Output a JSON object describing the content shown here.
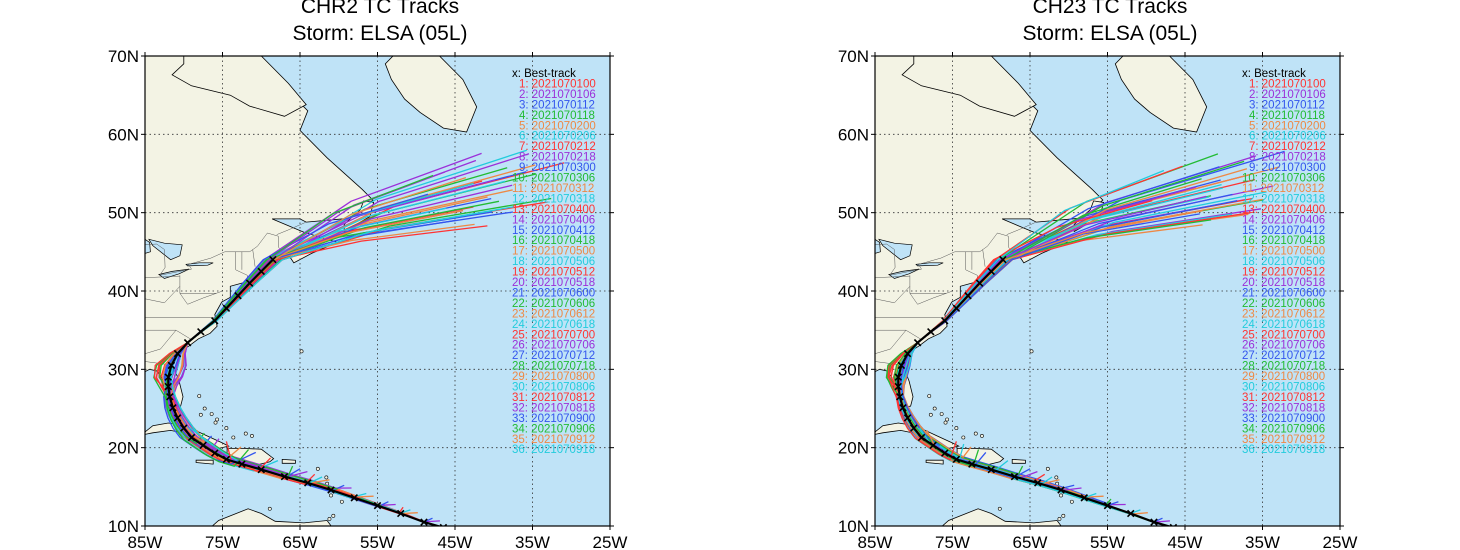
{
  "panels": [
    {
      "title": "CHR2 TC Tracks",
      "subtitle": "Storm: ELSA (05L)"
    },
    {
      "title": "CH23 TC Tracks",
      "subtitle": "Storm: ELSA (05L)"
    }
  ],
  "axes": {
    "lon_ticks": [
      "85W",
      "75W",
      "65W",
      "55W",
      "45W",
      "35W",
      "25W"
    ],
    "lat_ticks": [
      "70N",
      "60N",
      "50N",
      "40N",
      "30N",
      "20N",
      "10N"
    ],
    "lon_range": [
      -85,
      -25
    ],
    "lat_range": [
      10,
      70
    ],
    "grid": "dotted"
  },
  "legend": {
    "position": "top-right",
    "header": "x: Best-track",
    "entries": [
      {
        "label": "1: 2021070100",
        "color": "#ff3333"
      },
      {
        "label": "2: 2021070106",
        "color": "#9b30d9"
      },
      {
        "label": "3: 2021070112",
        "color": "#3355ee"
      },
      {
        "label": "4: 2021070118",
        "color": "#22bb33"
      },
      {
        "label": "5: 2021070200",
        "color": "#ee8844"
      },
      {
        "label": "6: 2021070206",
        "color": "#22ccdd"
      },
      {
        "label": "7: 2021070212",
        "color": "#ff3333"
      },
      {
        "label": "8: 2021070218",
        "color": "#9b30d9"
      },
      {
        "label": "9: 2021070300",
        "color": "#3355ee"
      },
      {
        "label": "10: 2021070306",
        "color": "#22bb33"
      },
      {
        "label": "11: 2021070312",
        "color": "#ee8844"
      },
      {
        "label": "12: 2021070318",
        "color": "#22ccdd"
      },
      {
        "label": "13: 2021070400",
        "color": "#ff3333"
      },
      {
        "label": "14: 2021070406",
        "color": "#9b30d9"
      },
      {
        "label": "15: 2021070412",
        "color": "#3355ee"
      },
      {
        "label": "16: 2021070418",
        "color": "#22bb33"
      },
      {
        "label": "17: 2021070500",
        "color": "#ee8844"
      },
      {
        "label": "18: 2021070506",
        "color": "#22ccdd"
      },
      {
        "label": "19: 2021070512",
        "color": "#ff3333"
      },
      {
        "label": "20: 2021070518",
        "color": "#9b30d9"
      },
      {
        "label": "21: 2021070600",
        "color": "#3355ee"
      },
      {
        "label": "22: 2021070606",
        "color": "#22bb33"
      },
      {
        "label": "23: 2021070612",
        "color": "#ee8844"
      },
      {
        "label": "24: 2021070618",
        "color": "#22ccdd"
      },
      {
        "label": "25: 2021070700",
        "color": "#ff3333"
      },
      {
        "label": "26: 2021070706",
        "color": "#9b30d9"
      },
      {
        "label": "27: 2021070712",
        "color": "#3355ee"
      },
      {
        "label": "28: 2021070718",
        "color": "#22bb33"
      },
      {
        "label": "29: 2021070800",
        "color": "#ee8844"
      },
      {
        "label": "30: 2021070806",
        "color": "#22ccdd"
      },
      {
        "label": "31: 2021070812",
        "color": "#ff3333"
      },
      {
        "label": "32: 2021070818",
        "color": "#9b30d9"
      },
      {
        "label": "33: 2021070900",
        "color": "#3355ee"
      },
      {
        "label": "34: 2021070906",
        "color": "#22bb33"
      },
      {
        "label": "35: 2021070912",
        "color": "#ee8844"
      },
      {
        "label": "36: 2021070918",
        "color": "#22ccdd"
      }
    ]
  },
  "colors": {
    "ocean": "#bfe3f7",
    "land": "#f3f3e4",
    "best_track": "#000000"
  },
  "best_track": [
    [
      -46.5,
      9.8
    ],
    [
      -49.0,
      10.5
    ],
    [
      -52.0,
      11.6
    ],
    [
      -55.0,
      12.6
    ],
    [
      -58.0,
      13.6
    ],
    [
      -61.0,
      14.6
    ],
    [
      -64.0,
      15.5
    ],
    [
      -67.0,
      16.3
    ],
    [
      -70.0,
      17.2
    ],
    [
      -72.5,
      17.9
    ],
    [
      -74.5,
      18.5
    ],
    [
      -76.0,
      19.3
    ],
    [
      -77.5,
      20.3
    ],
    [
      -79.0,
      21.3
    ],
    [
      -80.0,
      22.5
    ],
    [
      -80.8,
      23.8
    ],
    [
      -81.4,
      25.1
    ],
    [
      -81.8,
      26.5
    ],
    [
      -82.0,
      27.8
    ],
    [
      -82.0,
      29.0
    ],
    [
      -81.6,
      30.5
    ],
    [
      -80.8,
      32.0
    ],
    [
      -79.5,
      33.4
    ],
    [
      -77.8,
      34.8
    ],
    [
      -76.0,
      36.2
    ],
    [
      -74.5,
      37.8
    ],
    [
      -73.0,
      39.4
    ],
    [
      -71.5,
      41.0
    ],
    [
      -70.0,
      42.5
    ],
    [
      -68.5,
      44.0
    ]
  ]
}
